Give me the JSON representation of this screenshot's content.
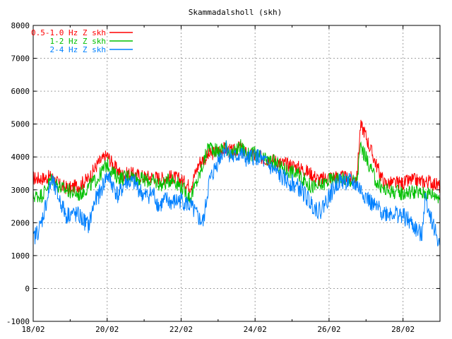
{
  "chart_data": {
    "type": "line",
    "title": "Skammadalsholl (skh)",
    "xlabel": "",
    "ylabel": "",
    "x_unit": "day",
    "xlim": [
      0,
      11
    ],
    "ylim": [
      -1000,
      8000
    ],
    "y_ticks": [
      -1000,
      0,
      1000,
      2000,
      3000,
      4000,
      5000,
      6000,
      7000,
      8000
    ],
    "x_ticks": [
      {
        "x": 0,
        "label": "18/02"
      },
      {
        "x": 2,
        "label": "20/02"
      },
      {
        "x": 4,
        "label": "22/02"
      },
      {
        "x": 6,
        "label": "24/02"
      },
      {
        "x": 8,
        "label": "26/02"
      },
      {
        "x": 10,
        "label": "28/02"
      }
    ],
    "grid": true,
    "legend_position": "top-left",
    "series": [
      {
        "name": "0.5-1.0 Hz Z skh",
        "color": "#ff0000",
        "x": [
          0,
          0.25,
          0.5,
          0.75,
          1,
          1.25,
          1.5,
          1.75,
          2,
          2.2,
          2.4,
          2.6,
          2.8,
          3,
          3.25,
          3.5,
          3.75,
          4,
          4.25,
          4.5,
          4.75,
          5,
          5.2,
          5.4,
          5.6,
          5.8,
          6,
          6.25,
          6.5,
          6.75,
          7,
          7.25,
          7.5,
          7.75,
          8,
          8.25,
          8.5,
          8.75,
          8.85,
          8.95,
          9.1,
          9.3,
          9.5,
          9.75,
          10,
          10.25,
          10.5,
          10.75,
          11
        ],
        "y": [
          3350,
          3350,
          3400,
          3100,
          3050,
          3150,
          3350,
          3800,
          4050,
          3700,
          3450,
          3500,
          3450,
          3400,
          3400,
          3350,
          3400,
          3300,
          3100,
          3850,
          4050,
          4200,
          4250,
          4150,
          4300,
          4050,
          4050,
          3950,
          3900,
          3800,
          3750,
          3650,
          3500,
          3300,
          3400,
          3400,
          3350,
          3350,
          4950,
          4800,
          4300,
          3700,
          3200,
          3200,
          3200,
          3300,
          3250,
          3250,
          3100
        ]
      },
      {
        "name": "1-2 Hz Z skh",
        "color": "#00c000",
        "x": [
          0,
          0.25,
          0.5,
          0.75,
          1,
          1.25,
          1.5,
          1.75,
          2,
          2.2,
          2.4,
          2.6,
          2.8,
          3,
          3.25,
          3.5,
          3.75,
          4,
          4.25,
          4.5,
          4.75,
          5,
          5.2,
          5.4,
          5.6,
          5.8,
          6,
          6.25,
          6.5,
          6.75,
          7,
          7.25,
          7.5,
          7.75,
          8,
          8.25,
          8.5,
          8.75,
          8.85,
          8.95,
          9.1,
          9.3,
          9.5,
          9.75,
          10,
          10.25,
          10.5,
          10.75,
          11
        ],
        "y": [
          2800,
          2850,
          3350,
          3050,
          2950,
          2850,
          3100,
          3350,
          3800,
          3450,
          3350,
          3450,
          3350,
          3300,
          3250,
          3150,
          3350,
          3100,
          2750,
          3450,
          4350,
          4150,
          4350,
          4050,
          4350,
          4050,
          4100,
          3900,
          3850,
          3650,
          3550,
          3400,
          3100,
          3100,
          3300,
          3350,
          3300,
          3250,
          4300,
          4100,
          3700,
          3200,
          3000,
          2950,
          2900,
          2950,
          2900,
          2900,
          2800
        ]
      },
      {
        "name": "2-4 Hz Z skh",
        "color": "#0080ff",
        "x": [
          0,
          0.2,
          0.35,
          0.5,
          0.6,
          0.75,
          0.9,
          1,
          1.25,
          1.5,
          1.65,
          1.8,
          2,
          2.15,
          2.3,
          2.5,
          2.75,
          3,
          3.25,
          3.4,
          3.6,
          3.75,
          4,
          4.25,
          4.5,
          4.6,
          4.75,
          5,
          5.2,
          5.4,
          5.6,
          5.8,
          6,
          6.25,
          6.5,
          6.75,
          7,
          7.25,
          7.5,
          7.75,
          8,
          8.25,
          8.5,
          8.75,
          8.85,
          9,
          9.2,
          9.5,
          9.75,
          10,
          10.2,
          10.5,
          10.6,
          10.75,
          10.85,
          11
        ],
        "y": [
          1500,
          1900,
          2600,
          3300,
          3000,
          2600,
          2200,
          2300,
          2200,
          1900,
          2600,
          2900,
          3450,
          3150,
          2800,
          3250,
          3200,
          2800,
          2900,
          2500,
          2700,
          2600,
          2700,
          2500,
          2100,
          2000,
          3200,
          3900,
          4300,
          3950,
          4100,
          3900,
          4050,
          3850,
          3600,
          3350,
          3200,
          3000,
          2600,
          2350,
          2800,
          3250,
          3250,
          3150,
          3000,
          2800,
          2500,
          2300,
          2300,
          2200,
          2000,
          1600,
          2800,
          2200,
          1800,
          1300
        ]
      }
    ]
  }
}
